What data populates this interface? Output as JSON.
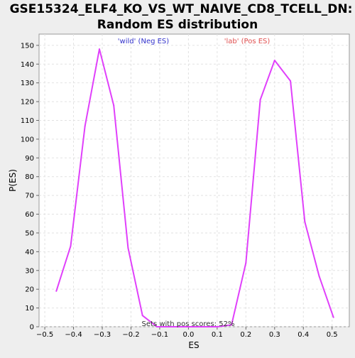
{
  "chart_data": {
    "type": "line",
    "title_line1": "GSE15324_ELF4_KO_VS_WT_NAIVE_CD8_TCELL_DN:",
    "title_line2": "Random ES distribution",
    "xlabel": "ES",
    "ylabel": "P(ES)",
    "xlim": [
      -0.52,
      0.56
    ],
    "ylim": [
      0,
      156
    ],
    "grid": true,
    "x_ticks": [
      -0.5,
      -0.4,
      -0.3,
      -0.2,
      -0.1,
      0.0,
      0.1,
      0.2,
      0.3,
      0.4,
      0.5
    ],
    "x_tick_labels": [
      "−0.5",
      "−0.4",
      "−0.3",
      "−0.2",
      "−0.1",
      "0.0",
      "0.1",
      "0.2",
      "0.3",
      "0.4",
      "0.5"
    ],
    "y_ticks": [
      0,
      10,
      20,
      30,
      40,
      50,
      60,
      70,
      80,
      90,
      100,
      110,
      120,
      130,
      140,
      150
    ],
    "series": [
      {
        "color": "#e040fb",
        "points": [
          [
            -0.46,
            19
          ],
          [
            -0.41,
            43
          ],
          [
            -0.36,
            107
          ],
          [
            -0.31,
            148
          ],
          [
            -0.26,
            118
          ],
          [
            -0.21,
            42
          ],
          [
            -0.16,
            6
          ],
          [
            -0.11,
            0
          ],
          [
            -0.06,
            0
          ],
          [
            0.0,
            0
          ],
          [
            0.05,
            0
          ],
          [
            0.1,
            0
          ],
          [
            0.15,
            1
          ],
          [
            0.2,
            34
          ],
          [
            0.25,
            121
          ],
          [
            0.3,
            142
          ],
          [
            0.355,
            131
          ],
          [
            0.405,
            56
          ],
          [
            0.455,
            27
          ],
          [
            0.505,
            5
          ]
        ]
      }
    ],
    "annotations": [
      {
        "text": "'wild' (Neg ES)",
        "color": "#3333cc"
      },
      {
        "text": "'lab' (Pos ES)",
        "color": "#e05050"
      },
      {
        "text": "Sets with pos scores: 52%",
        "color": "#333333"
      }
    ]
  }
}
